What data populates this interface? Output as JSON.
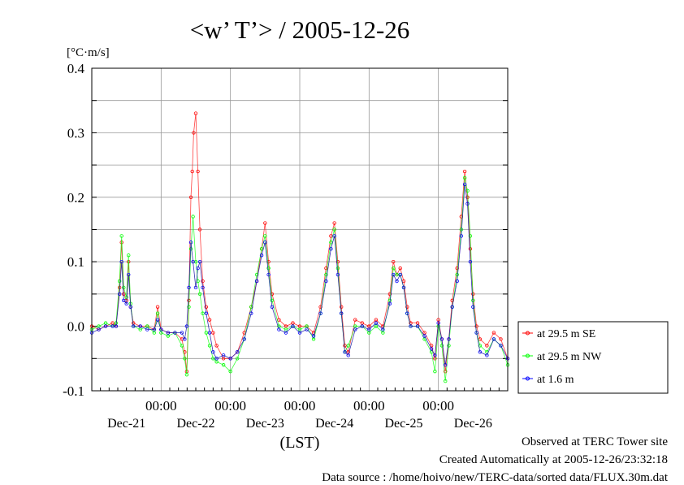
{
  "chart_data": {
    "type": "line",
    "title": "<w’ T’> / 2005-12-26",
    "ylabel": "[°C·m/s]",
    "xlabel": "(LST)",
    "ylim": [
      -0.1,
      0.4
    ],
    "yticks": [
      "-0.1",
      "0.0",
      "0.1",
      "0.2",
      "0.3",
      "0.4"
    ],
    "xlim": [
      0,
      6
    ],
    "xticks": [
      {
        "x": 1,
        "label": "00:00"
      },
      {
        "x": 2,
        "label": "00:00"
      },
      {
        "x": 3,
        "label": "00:00"
      },
      {
        "x": 4,
        "label": "00:00"
      },
      {
        "x": 5,
        "label": "00:00"
      }
    ],
    "day_labels": [
      {
        "x": 0.5,
        "label": "Dec-21"
      },
      {
        "x": 1.5,
        "label": "Dec-22"
      },
      {
        "x": 2.5,
        "label": "Dec-23"
      },
      {
        "x": 3.5,
        "label": "Dec-24"
      },
      {
        "x": 4.5,
        "label": "Dec-25"
      },
      {
        "x": 5.5,
        "label": "Dec-26"
      }
    ],
    "grid": true,
    "legend_position": "right-bottom",
    "series": [
      {
        "name": "at 29.5 m SE",
        "color": "#ff0000",
        "points": [
          [
            0,
            0.0
          ],
          [
            0.1,
            -0.005
          ],
          [
            0.2,
            0.0
          ],
          [
            0.3,
            0.005
          ],
          [
            0.35,
            0.0
          ],
          [
            0.4,
            0.06
          ],
          [
            0.43,
            0.13
          ],
          [
            0.46,
            0.05
          ],
          [
            0.5,
            0.04
          ],
          [
            0.53,
            0.1
          ],
          [
            0.56,
            0.03
          ],
          [
            0.6,
            0.005
          ],
          [
            0.7,
            0.0
          ],
          [
            0.8,
            0.0
          ],
          [
            0.9,
            -0.005
          ],
          [
            0.95,
            0.03
          ],
          [
            1.0,
            -0.005
          ],
          [
            1.1,
            -0.01
          ],
          [
            1.2,
            -0.01
          ],
          [
            1.3,
            -0.02
          ],
          [
            1.34,
            -0.04
          ],
          [
            1.37,
            -0.07
          ],
          [
            1.4,
            0.04
          ],
          [
            1.43,
            0.2
          ],
          [
            1.45,
            0.24
          ],
          [
            1.47,
            0.3
          ],
          [
            1.5,
            0.33
          ],
          [
            1.53,
            0.24
          ],
          [
            1.56,
            0.15
          ],
          [
            1.6,
            0.07
          ],
          [
            1.65,
            0.03
          ],
          [
            1.7,
            0.01
          ],
          [
            1.75,
            -0.01
          ],
          [
            1.8,
            -0.03
          ],
          [
            1.9,
            -0.05
          ],
          [
            2.0,
            -0.05
          ],
          [
            2.1,
            -0.04
          ],
          [
            2.2,
            -0.01
          ],
          [
            2.3,
            0.03
          ],
          [
            2.38,
            0.07
          ],
          [
            2.45,
            0.12
          ],
          [
            2.5,
            0.16
          ],
          [
            2.55,
            0.1
          ],
          [
            2.6,
            0.05
          ],
          [
            2.7,
            0.01
          ],
          [
            2.8,
            0.0
          ],
          [
            2.9,
            0.005
          ],
          [
            3.0,
            0.0
          ],
          [
            3.1,
            0.0
          ],
          [
            3.2,
            -0.01
          ],
          [
            3.3,
            0.03
          ],
          [
            3.38,
            0.09
          ],
          [
            3.45,
            0.14
          ],
          [
            3.5,
            0.16
          ],
          [
            3.55,
            0.1
          ],
          [
            3.6,
            0.03
          ],
          [
            3.65,
            -0.03
          ],
          [
            3.7,
            -0.04
          ],
          [
            3.8,
            0.01
          ],
          [
            3.9,
            0.005
          ],
          [
            4.0,
            0.0
          ],
          [
            4.1,
            0.01
          ],
          [
            4.2,
            0.0
          ],
          [
            4.3,
            0.05
          ],
          [
            4.35,
            0.1
          ],
          [
            4.4,
            0.08
          ],
          [
            4.45,
            0.09
          ],
          [
            4.5,
            0.07
          ],
          [
            4.55,
            0.03
          ],
          [
            4.6,
            0.005
          ],
          [
            4.7,
            0.005
          ],
          [
            4.8,
            -0.01
          ],
          [
            4.9,
            -0.03
          ],
          [
            4.95,
            -0.05
          ],
          [
            5.0,
            0.01
          ],
          [
            5.05,
            -0.02
          ],
          [
            5.1,
            -0.07
          ],
          [
            5.15,
            -0.02
          ],
          [
            5.2,
            0.04
          ],
          [
            5.27,
            0.09
          ],
          [
            5.33,
            0.17
          ],
          [
            5.38,
            0.24
          ],
          [
            5.42,
            0.2
          ],
          [
            5.46,
            0.12
          ],
          [
            5.5,
            0.05
          ],
          [
            5.55,
            0.0
          ],
          [
            5.6,
            -0.02
          ],
          [
            5.7,
            -0.03
          ],
          [
            5.8,
            -0.01
          ],
          [
            5.9,
            -0.02
          ],
          [
            6.0,
            -0.05
          ]
        ]
      },
      {
        "name": "at 29.5 m NW",
        "color": "#00ff00",
        "points": [
          [
            0,
            -0.005
          ],
          [
            0.1,
            0.0
          ],
          [
            0.2,
            0.005
          ],
          [
            0.3,
            0.0
          ],
          [
            0.35,
            0.005
          ],
          [
            0.4,
            0.07
          ],
          [
            0.43,
            0.14
          ],
          [
            0.46,
            0.06
          ],
          [
            0.5,
            0.045
          ],
          [
            0.53,
            0.11
          ],
          [
            0.56,
            0.035
          ],
          [
            0.6,
            0.0
          ],
          [
            0.7,
            -0.005
          ],
          [
            0.8,
            0.0
          ],
          [
            0.9,
            -0.01
          ],
          [
            0.95,
            0.02
          ],
          [
            1.0,
            -0.01
          ],
          [
            1.1,
            -0.015
          ],
          [
            1.2,
            -0.01
          ],
          [
            1.3,
            -0.03
          ],
          [
            1.34,
            -0.05
          ],
          [
            1.37,
            -0.075
          ],
          [
            1.4,
            0.03
          ],
          [
            1.43,
            0.12
          ],
          [
            1.46,
            0.17
          ],
          [
            1.5,
            0.1
          ],
          [
            1.53,
            0.07
          ],
          [
            1.56,
            0.05
          ],
          [
            1.6,
            0.02
          ],
          [
            1.65,
            -0.01
          ],
          [
            1.7,
            -0.03
          ],
          [
            1.75,
            -0.05
          ],
          [
            1.8,
            -0.055
          ],
          [
            1.9,
            -0.06
          ],
          [
            2.0,
            -0.07
          ],
          [
            2.1,
            -0.05
          ],
          [
            2.2,
            -0.02
          ],
          [
            2.3,
            0.03
          ],
          [
            2.38,
            0.08
          ],
          [
            2.45,
            0.12
          ],
          [
            2.5,
            0.14
          ],
          [
            2.55,
            0.09
          ],
          [
            2.6,
            0.04
          ],
          [
            2.7,
            0.0
          ],
          [
            2.8,
            -0.005
          ],
          [
            2.9,
            0.0
          ],
          [
            3.0,
            -0.005
          ],
          [
            3.1,
            0.0
          ],
          [
            3.2,
            -0.02
          ],
          [
            3.3,
            0.02
          ],
          [
            3.38,
            0.08
          ],
          [
            3.45,
            0.13
          ],
          [
            3.5,
            0.15
          ],
          [
            3.55,
            0.09
          ],
          [
            3.6,
            0.02
          ],
          [
            3.65,
            -0.04
          ],
          [
            3.7,
            -0.03
          ],
          [
            3.8,
            0.0
          ],
          [
            3.9,
            0.0
          ],
          [
            4.0,
            -0.01
          ],
          [
            4.1,
            0.0
          ],
          [
            4.2,
            -0.01
          ],
          [
            4.3,
            0.04
          ],
          [
            4.35,
            0.09
          ],
          [
            4.4,
            0.08
          ],
          [
            4.45,
            0.08
          ],
          [
            4.5,
            0.06
          ],
          [
            4.55,
            0.02
          ],
          [
            4.6,
            0.0
          ],
          [
            4.7,
            0.0
          ],
          [
            4.8,
            -0.02
          ],
          [
            4.9,
            -0.04
          ],
          [
            4.95,
            -0.07
          ],
          [
            5.0,
            0.0
          ],
          [
            5.05,
            -0.03
          ],
          [
            5.1,
            -0.085
          ],
          [
            5.15,
            -0.03
          ],
          [
            5.2,
            0.03
          ],
          [
            5.27,
            0.08
          ],
          [
            5.33,
            0.15
          ],
          [
            5.38,
            0.23
          ],
          [
            5.42,
            0.21
          ],
          [
            5.46,
            0.14
          ],
          [
            5.5,
            0.04
          ],
          [
            5.55,
            -0.01
          ],
          [
            5.6,
            -0.03
          ],
          [
            5.7,
            -0.04
          ],
          [
            5.8,
            -0.02
          ],
          [
            5.9,
            -0.03
          ],
          [
            6.0,
            -0.06
          ]
        ]
      },
      {
        "name": "at 1.6 m",
        "color": "#0000ff",
        "points": [
          [
            0,
            -0.01
          ],
          [
            0.1,
            -0.005
          ],
          [
            0.2,
            0.0
          ],
          [
            0.3,
            0.0
          ],
          [
            0.35,
            0.0
          ],
          [
            0.4,
            0.05
          ],
          [
            0.43,
            0.1
          ],
          [
            0.46,
            0.04
          ],
          [
            0.5,
            0.035
          ],
          [
            0.53,
            0.08
          ],
          [
            0.56,
            0.03
          ],
          [
            0.6,
            0.0
          ],
          [
            0.7,
            0.0
          ],
          [
            0.8,
            -0.005
          ],
          [
            0.9,
            -0.005
          ],
          [
            0.95,
            0.01
          ],
          [
            1.0,
            -0.005
          ],
          [
            1.1,
            -0.01
          ],
          [
            1.2,
            -0.01
          ],
          [
            1.3,
            -0.01
          ],
          [
            1.34,
            -0.02
          ],
          [
            1.37,
            0.0
          ],
          [
            1.4,
            0.06
          ],
          [
            1.43,
            0.13
          ],
          [
            1.46,
            0.1
          ],
          [
            1.5,
            0.06
          ],
          [
            1.53,
            0.09
          ],
          [
            1.56,
            0.1
          ],
          [
            1.6,
            0.06
          ],
          [
            1.65,
            0.02
          ],
          [
            1.7,
            -0.01
          ],
          [
            1.75,
            -0.04
          ],
          [
            1.8,
            -0.05
          ],
          [
            1.9,
            -0.045
          ],
          [
            2.0,
            -0.05
          ],
          [
            2.1,
            -0.04
          ],
          [
            2.2,
            -0.02
          ],
          [
            2.3,
            0.02
          ],
          [
            2.38,
            0.07
          ],
          [
            2.45,
            0.11
          ],
          [
            2.5,
            0.13
          ],
          [
            2.55,
            0.08
          ],
          [
            2.6,
            0.03
          ],
          [
            2.7,
            -0.005
          ],
          [
            2.8,
            -0.01
          ],
          [
            2.9,
            0.0
          ],
          [
            3.0,
            -0.01
          ],
          [
            3.1,
            -0.005
          ],
          [
            3.2,
            -0.015
          ],
          [
            3.3,
            0.02
          ],
          [
            3.38,
            0.07
          ],
          [
            3.45,
            0.12
          ],
          [
            3.5,
            0.14
          ],
          [
            3.55,
            0.08
          ],
          [
            3.6,
            0.02
          ],
          [
            3.65,
            -0.04
          ],
          [
            3.7,
            -0.045
          ],
          [
            3.8,
            -0.005
          ],
          [
            3.9,
            0.0
          ],
          [
            4.0,
            -0.005
          ],
          [
            4.1,
            0.005
          ],
          [
            4.2,
            -0.005
          ],
          [
            4.3,
            0.035
          ],
          [
            4.35,
            0.08
          ],
          [
            4.4,
            0.07
          ],
          [
            4.45,
            0.08
          ],
          [
            4.5,
            0.06
          ],
          [
            4.55,
            0.02
          ],
          [
            4.6,
            0.0
          ],
          [
            4.7,
            0.0
          ],
          [
            4.8,
            -0.015
          ],
          [
            4.9,
            -0.035
          ],
          [
            4.95,
            -0.045
          ],
          [
            5.0,
            0.005
          ],
          [
            5.05,
            -0.02
          ],
          [
            5.1,
            -0.06
          ],
          [
            5.15,
            -0.02
          ],
          [
            5.2,
            0.03
          ],
          [
            5.27,
            0.07
          ],
          [
            5.33,
            0.14
          ],
          [
            5.38,
            0.22
          ],
          [
            5.42,
            0.19
          ],
          [
            5.46,
            0.1
          ],
          [
            5.5,
            0.03
          ],
          [
            5.55,
            -0.01
          ],
          [
            5.6,
            -0.04
          ],
          [
            5.7,
            -0.045
          ],
          [
            5.8,
            -0.02
          ],
          [
            5.9,
            -0.03
          ],
          [
            6.0,
            -0.05
          ]
        ]
      }
    ]
  },
  "footer": {
    "observed": "Observed at TERC Tower site",
    "created": "Created Automatically at 2005-12-26/23:32:18",
    "source": "Data source : /home/hoivo/new/TERC-data/sorted  data/FLUX.30m.dat"
  }
}
